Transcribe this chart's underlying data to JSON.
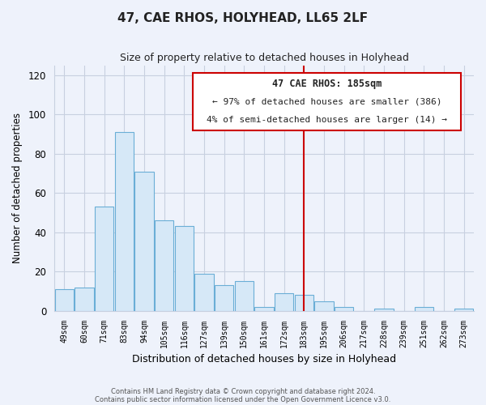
{
  "title": "47, CAE RHOS, HOLYHEAD, LL65 2LF",
  "subtitle": "Size of property relative to detached houses in Holyhead",
  "xlabel": "Distribution of detached houses by size in Holyhead",
  "ylabel": "Number of detached properties",
  "bar_labels": [
    "49sqm",
    "60sqm",
    "71sqm",
    "83sqm",
    "94sqm",
    "105sqm",
    "116sqm",
    "127sqm",
    "139sqm",
    "150sqm",
    "161sqm",
    "172sqm",
    "183sqm",
    "195sqm",
    "206sqm",
    "217sqm",
    "228sqm",
    "239sqm",
    "251sqm",
    "262sqm",
    "273sqm"
  ],
  "bar_values": [
    11,
    12,
    53,
    91,
    71,
    46,
    43,
    19,
    13,
    15,
    2,
    9,
    8,
    5,
    2,
    0,
    1,
    0,
    2,
    0,
    1
  ],
  "bar_color": "#d6e8f7",
  "bar_edge_color": "#6aaed6",
  "ylim": [
    0,
    125
  ],
  "yticks": [
    0,
    20,
    40,
    60,
    80,
    100,
    120
  ],
  "vline_index": 12,
  "vline_color": "#cc0000",
  "annotation_title": "47 CAE RHOS: 185sqm",
  "annotation_line1": "← 97% of detached houses are smaller (386)",
  "annotation_line2": "4% of semi-detached houses are larger (14) →",
  "annotation_box_color": "#cc0000",
  "footer_line1": "Contains HM Land Registry data © Crown copyright and database right 2024.",
  "footer_line2": "Contains public sector information licensed under the Open Government Licence v3.0.",
  "background_color": "#eef2fb",
  "grid_color": "#c8d0e0"
}
